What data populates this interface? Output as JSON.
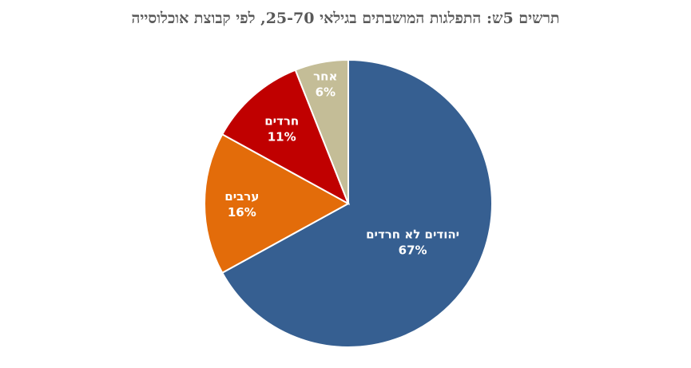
{
  "chart_data": {
    "type": "pie",
    "title": "תרשים 5ש: התפלגות המושבתים בגילאי 25-70, לפי קבוצת אוכלוסייה",
    "categories": [
      "יהודים לא חרדים",
      "ערבים",
      "חרדים",
      "אחר"
    ],
    "values": [
      67,
      16,
      11,
      6
    ],
    "value_labels": [
      "67%",
      "16%",
      "11%",
      "6%"
    ],
    "colors": [
      "#365f91",
      "#e36c0a",
      "#c00000",
      "#c4bd97"
    ],
    "start_angle_deg": 0,
    "direction": "clockwise",
    "legend": "none",
    "labels_inside": true
  }
}
